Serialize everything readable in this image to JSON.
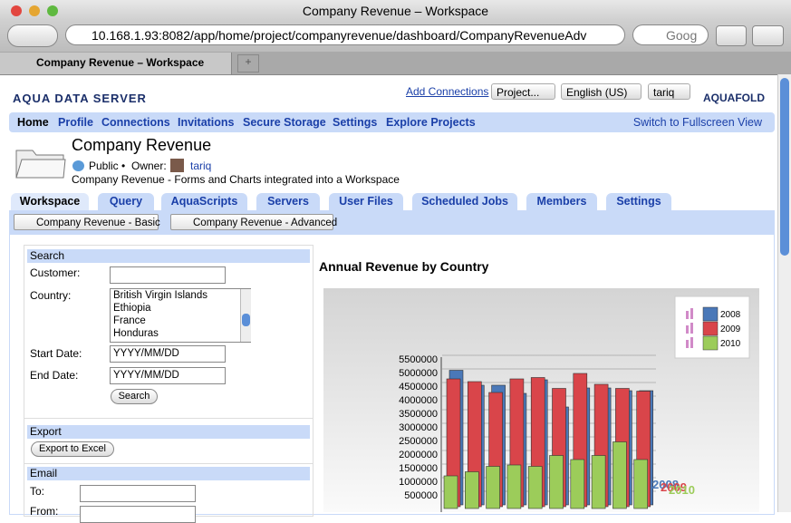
{
  "browser": {
    "title": "Company Revenue – Workspace",
    "url": "10.168.1.93:8082/app/home/project/companyrevenue/dashboard/CompanyRevenueAdv",
    "search": "Goog",
    "tab": "Company Revenue – Workspace"
  },
  "header": {
    "logo": "AQUA DATA SERVER",
    "add_connections": "Add Connections",
    "project_select": "Project...",
    "language_select": "English (US)",
    "user_select": "tariq",
    "logo_right": "AQUAFOLD"
  },
  "nav": {
    "items": [
      "Home",
      "Profile",
      "Connections",
      "Invitations",
      "Secure Storage",
      "Settings",
      "Explore Projects"
    ],
    "fullscreen": "Switch to Fullscreen View"
  },
  "project": {
    "title": "Company Revenue",
    "visibility": "Public •",
    "owner_label": "Owner:",
    "owner": "tariq",
    "description": "Company Revenue - Forms and Charts integrated into a Workspace"
  },
  "tabs": [
    "Workspace",
    "Query",
    "AquaScripts",
    "Servers",
    "User Files",
    "Scheduled Jobs",
    "Members",
    "Settings"
  ],
  "subtabs": [
    "Company Revenue - Basic",
    "Company Revenue - Advanced"
  ],
  "search_form": {
    "title": "Search",
    "customer_label": "Customer:",
    "country_label": "Country:",
    "countries": [
      "British Virgin Islands",
      "Ethiopia",
      "France",
      "Honduras"
    ],
    "start_label": "Start Date:",
    "start_placeholder": "YYYY/MM/DD",
    "end_label": "End Date:",
    "end_placeholder": "YYYY/MM/DD",
    "button": "Search"
  },
  "export_form": {
    "title": "Export",
    "button": "Export to Excel"
  },
  "email_form": {
    "title": "Email",
    "to_label": "To:",
    "from_label": "From:"
  },
  "chart_data": {
    "type": "bar",
    "title": "Annual Revenue by Country",
    "categories": [
      null,
      null,
      null,
      null,
      null,
      null,
      null,
      null,
      null,
      null
    ],
    "series": [
      {
        "name": "2008",
        "color": "#4a78b8",
        "values": [
          4950000,
          4400000,
          4400000,
          4100000,
          4600000,
          3600000,
          4300000,
          4300000,
          4200000,
          4200000
        ]
      },
      {
        "name": "2009",
        "color": "#d9454a",
        "values": [
          4700000,
          4600000,
          4200000,
          4700000,
          4750000,
          4350000,
          4900000,
          4500000,
          4350000,
          4250000
        ]
      },
      {
        "name": "2010",
        "color": "#9ccc5a",
        "values": [
          1200000,
          1350000,
          1550000,
          1600000,
          1550000,
          1950000,
          1800000,
          1950000,
          2450000,
          1800000
        ]
      }
    ],
    "ylim": [
      0,
      5500000
    ],
    "yticks": [
      500000,
      1000000,
      1500000,
      2000000,
      2500000,
      3000000,
      3500000,
      4000000,
      4500000,
      5000000,
      5500000
    ],
    "grid": true,
    "legend": "top-right"
  }
}
